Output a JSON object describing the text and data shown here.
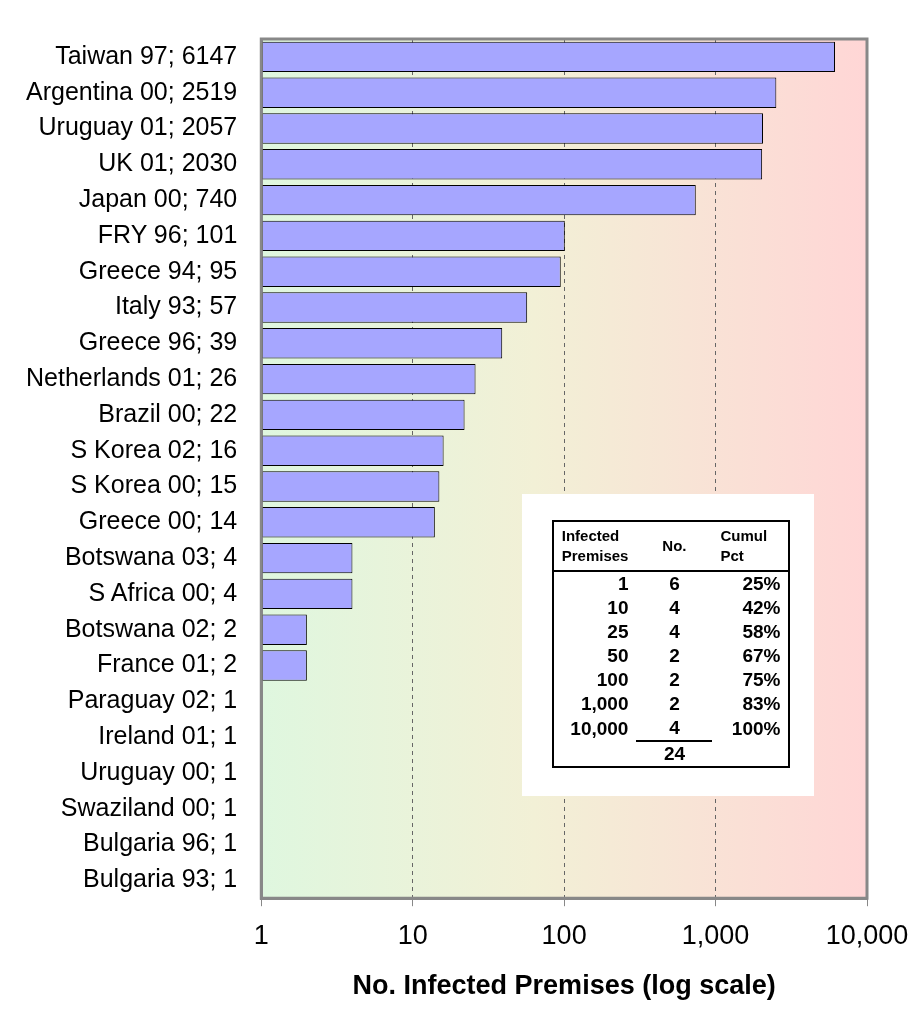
{
  "chart_data": {
    "type": "bar",
    "orientation": "horizontal",
    "log": "x",
    "xlabel": "No. Infected Premises (log scale)",
    "categories": [
      "Taiwan 97; 6147",
      "Argentina 00; 2519",
      "Uruguay 01; 2057",
      "UK 01; 2030",
      "Japan 00; 740",
      "FRY 96; 101",
      "Greece 94; 95",
      "Italy 93; 57",
      "Greece 96; 39",
      "Netherlands 01; 26",
      "Brazil 00; 22",
      "S Korea 02; 16",
      "S Korea 00; 15",
      "Greece 00; 14",
      "Botswana 03; 4",
      "S Africa 00; 4",
      "Botswana 02; 2",
      "France 01; 2",
      "Paraguay 02; 1",
      "Ireland 01; 1",
      "Uruguay 00; 1",
      "Swaziland 00; 1",
      "Bulgaria 96; 1",
      "Bulgaria 93; 1"
    ],
    "values": [
      6147,
      2519,
      2057,
      2030,
      740,
      101,
      95,
      57,
      39,
      26,
      22,
      16,
      15,
      14,
      4,
      4,
      2,
      2,
      1,
      1,
      1,
      1,
      1,
      1
    ],
    "color": "#a6a6ff",
    "xlim": [
      1,
      10000
    ],
    "xticks": [
      1,
      10,
      100,
      {
        "value": 1000,
        "label": "1,000"
      },
      {
        "value": 10000,
        "label": "10,000"
      }
    ],
    "grid": "x",
    "line_style": "dashed",
    "annotations": [
      "Infected Premises",
      "No.",
      "Cumul Pct",
      "1",
      "6",
      "25%",
      "10",
      "4",
      "42%",
      "25",
      "4",
      "58%",
      "50",
      "2",
      "67%",
      "100",
      "2",
      "75%",
      "1,000",
      "2",
      "83%",
      "10,000",
      "4",
      "100%",
      "24"
    ]
  }
}
